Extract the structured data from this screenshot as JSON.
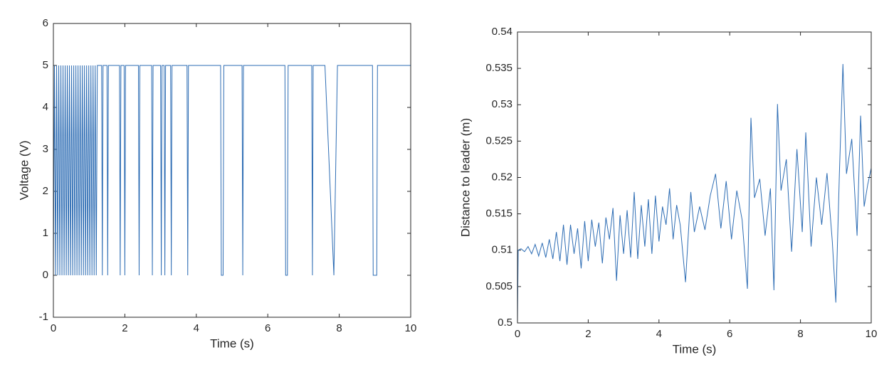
{
  "chart_data": [
    {
      "type": "line",
      "xlabel": "Time (s)",
      "ylabel": "Voltage (V)",
      "xlim": [
        0,
        10
      ],
      "xticks": [
        0,
        2,
        4,
        6,
        8,
        10
      ],
      "ylim": [
        -1,
        6
      ],
      "yticks": [
        -1,
        0,
        1,
        2,
        3,
        4,
        5,
        6
      ],
      "series": [
        {
          "color": "#2e6db4",
          "x": [
            0,
            0.03,
            0.06,
            0.09,
            0.12,
            0.15,
            0.18,
            0.21,
            0.24,
            0.27,
            0.3,
            0.33,
            0.36,
            0.39,
            0.42,
            0.45,
            0.48,
            0.51,
            0.54,
            0.57,
            0.6,
            0.63,
            0.66,
            0.69,
            0.72,
            0.75,
            0.78,
            0.81,
            0.84,
            0.87,
            0.9,
            0.93,
            0.96,
            0.99,
            1.02,
            1.05,
            1.08,
            1.11,
            1.14,
            1.17,
            1.2,
            1.23,
            1.35,
            1.37,
            1.39,
            1.5,
            1.52,
            1.54,
            1.85,
            1.87,
            1.89,
            1.98,
            2.0,
            2.02,
            2.38,
            2.4,
            2.42,
            2.75,
            2.77,
            2.79,
            3.0,
            3.02,
            3.04,
            3.1,
            3.12,
            3.14,
            3.28,
            3.3,
            3.32,
            3.74,
            3.76,
            3.78,
            4.68,
            4.7,
            4.75,
            4.77,
            5.28,
            5.3,
            5.32,
            6.48,
            6.5,
            6.55,
            6.57,
            7.23,
            7.25,
            7.27,
            7.6,
            7.85,
            7.95,
            8.93,
            8.95,
            9.05,
            9.07,
            10
          ],
          "values": [
            0,
            5,
            0,
            5,
            0,
            5,
            0,
            5,
            0,
            5,
            0,
            5,
            0,
            5,
            0,
            5,
            0,
            5,
            0,
            5,
            0,
            5,
            0,
            5,
            0,
            5,
            0,
            5,
            0,
            5,
            0,
            5,
            0,
            5,
            0,
            5,
            0,
            5,
            0,
            5,
            0,
            5,
            5,
            0,
            5,
            5,
            0,
            5,
            5,
            0,
            5,
            5,
            0,
            5,
            5,
            0,
            5,
            5,
            0,
            5,
            5,
            0,
            5,
            5,
            0,
            5,
            5,
            0,
            5,
            5,
            0,
            5,
            5,
            0,
            0,
            5,
            5,
            0,
            5,
            5,
            0,
            0,
            5,
            5,
            0,
            5,
            5,
            0,
            5,
            5,
            0,
            0,
            5,
            5
          ]
        }
      ]
    },
    {
      "type": "line",
      "xlabel": "Time (s)",
      "ylabel": "Distance to leader (m)",
      "xlim": [
        0,
        10
      ],
      "xticks": [
        0,
        2,
        4,
        6,
        8,
        10
      ],
      "ylim": [
        0.5,
        0.54
      ],
      "yticks": [
        0.5,
        0.505,
        0.51,
        0.515,
        0.52,
        0.525,
        0.53,
        0.535,
        0.54
      ],
      "series": [
        {
          "color": "#2e6db4",
          "x": [
            0,
            0.02,
            0.1,
            0.2,
            0.3,
            0.4,
            0.5,
            0.6,
            0.7,
            0.8,
            0.9,
            1.0,
            1.1,
            1.2,
            1.3,
            1.4,
            1.5,
            1.6,
            1.7,
            1.8,
            1.9,
            2.0,
            2.1,
            2.2,
            2.3,
            2.4,
            2.5,
            2.6,
            2.7,
            2.8,
            2.9,
            3.0,
            3.1,
            3.2,
            3.3,
            3.4,
            3.5,
            3.6,
            3.7,
            3.8,
            3.9,
            4.0,
            4.1,
            4.2,
            4.3,
            4.4,
            4.5,
            4.6,
            4.75,
            4.9,
            5.0,
            5.15,
            5.3,
            5.45,
            5.6,
            5.75,
            5.9,
            6.05,
            6.2,
            6.35,
            6.5,
            6.6,
            6.7,
            6.85,
            7.0,
            7.15,
            7.25,
            7.35,
            7.45,
            7.6,
            7.75,
            7.9,
            8.05,
            8.15,
            8.3,
            8.45,
            8.6,
            8.75,
            8.9,
            9.0,
            9.1,
            9.2,
            9.3,
            9.45,
            9.6,
            9.7,
            9.8,
            9.9,
            10
          ],
          "values": [
            0.5,
            0.51,
            0.5102,
            0.5098,
            0.5105,
            0.5095,
            0.5108,
            0.5092,
            0.511,
            0.509,
            0.5115,
            0.5088,
            0.5125,
            0.5085,
            0.5135,
            0.508,
            0.5135,
            0.5095,
            0.513,
            0.5075,
            0.514,
            0.5085,
            0.5142,
            0.5105,
            0.5138,
            0.5082,
            0.5145,
            0.5115,
            0.5158,
            0.5058,
            0.5148,
            0.5095,
            0.5155,
            0.509,
            0.518,
            0.5088,
            0.5162,
            0.5105,
            0.517,
            0.5095,
            0.5175,
            0.5112,
            0.516,
            0.5135,
            0.5185,
            0.5115,
            0.5162,
            0.5135,
            0.5056,
            0.518,
            0.5125,
            0.516,
            0.5128,
            0.5175,
            0.5205,
            0.513,
            0.5195,
            0.5115,
            0.5182,
            0.5142,
            0.5047,
            0.5282,
            0.5172,
            0.5198,
            0.512,
            0.5185,
            0.5045,
            0.5301,
            0.5182,
            0.5225,
            0.5098,
            0.5239,
            0.5125,
            0.5262,
            0.5105,
            0.52,
            0.5135,
            0.5206,
            0.5112,
            0.5028,
            0.5205,
            0.5356,
            0.5205,
            0.5253,
            0.512,
            0.5285,
            0.516,
            0.519,
            0.5213
          ]
        }
      ]
    }
  ]
}
